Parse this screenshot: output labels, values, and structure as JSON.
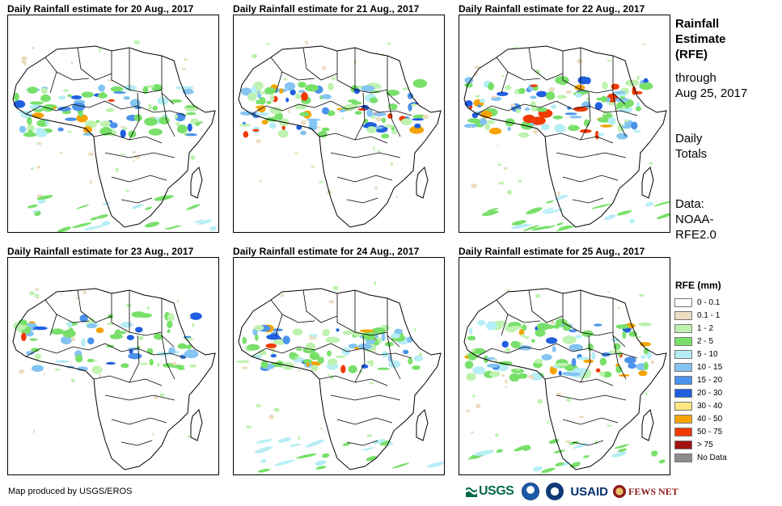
{
  "panels": [
    {
      "title": "Daily Rainfall estimate for 20 Aug., 2017"
    },
    {
      "title": "Daily Rainfall estimate for 21 Aug., 2017"
    },
    {
      "title": "Daily Rainfall estimate for 22 Aug., 2017"
    },
    {
      "title": "Daily Rainfall estimate for 23 Aug., 2017"
    },
    {
      "title": "Daily Rainfall estimate for 24 Aug., 2017"
    },
    {
      "title": "Daily Rainfall estimate for 25 Aug., 2017"
    }
  ],
  "side": {
    "title_lines": [
      "Rainfall",
      "Estimate",
      "(RFE)"
    ],
    "through_lines": [
      "through",
      "Aug 25, 2017"
    ],
    "totals_lines": [
      "Daily",
      "Totals"
    ],
    "data_lines": [
      "Data:",
      "NOAA-",
      "RFE2.0"
    ]
  },
  "legend": {
    "title": "RFE (mm)",
    "items": [
      {
        "label": "0 - 0.1",
        "color": "#ffffff"
      },
      {
        "label": "0.1 - 1",
        "color": "#ecdcc0"
      },
      {
        "label": "1 - 2",
        "color": "#bff2b0"
      },
      {
        "label": "2 - 5",
        "color": "#78e06a"
      },
      {
        "label": "5 - 10",
        "color": "#b6eef5"
      },
      {
        "label": "10 - 15",
        "color": "#85c4f2"
      },
      {
        "label": "15 - 20",
        "color": "#4a92ea"
      },
      {
        "label": "20 - 30",
        "color": "#1f5fe0"
      },
      {
        "label": "30 - 40",
        "color": "#ffe680"
      },
      {
        "label": "40 - 50",
        "color": "#f5a300"
      },
      {
        "label": "50 - 75",
        "color": "#f03a00"
      },
      {
        "label": "> 75",
        "color": "#a11212"
      },
      {
        "label": "No Data",
        "color": "#8c8c8c"
      }
    ]
  },
  "credit": "Map produced by USGS/EROS",
  "logos": {
    "usgs": "USGS",
    "usaid": "USAID",
    "fews": "FEWS NET"
  }
}
